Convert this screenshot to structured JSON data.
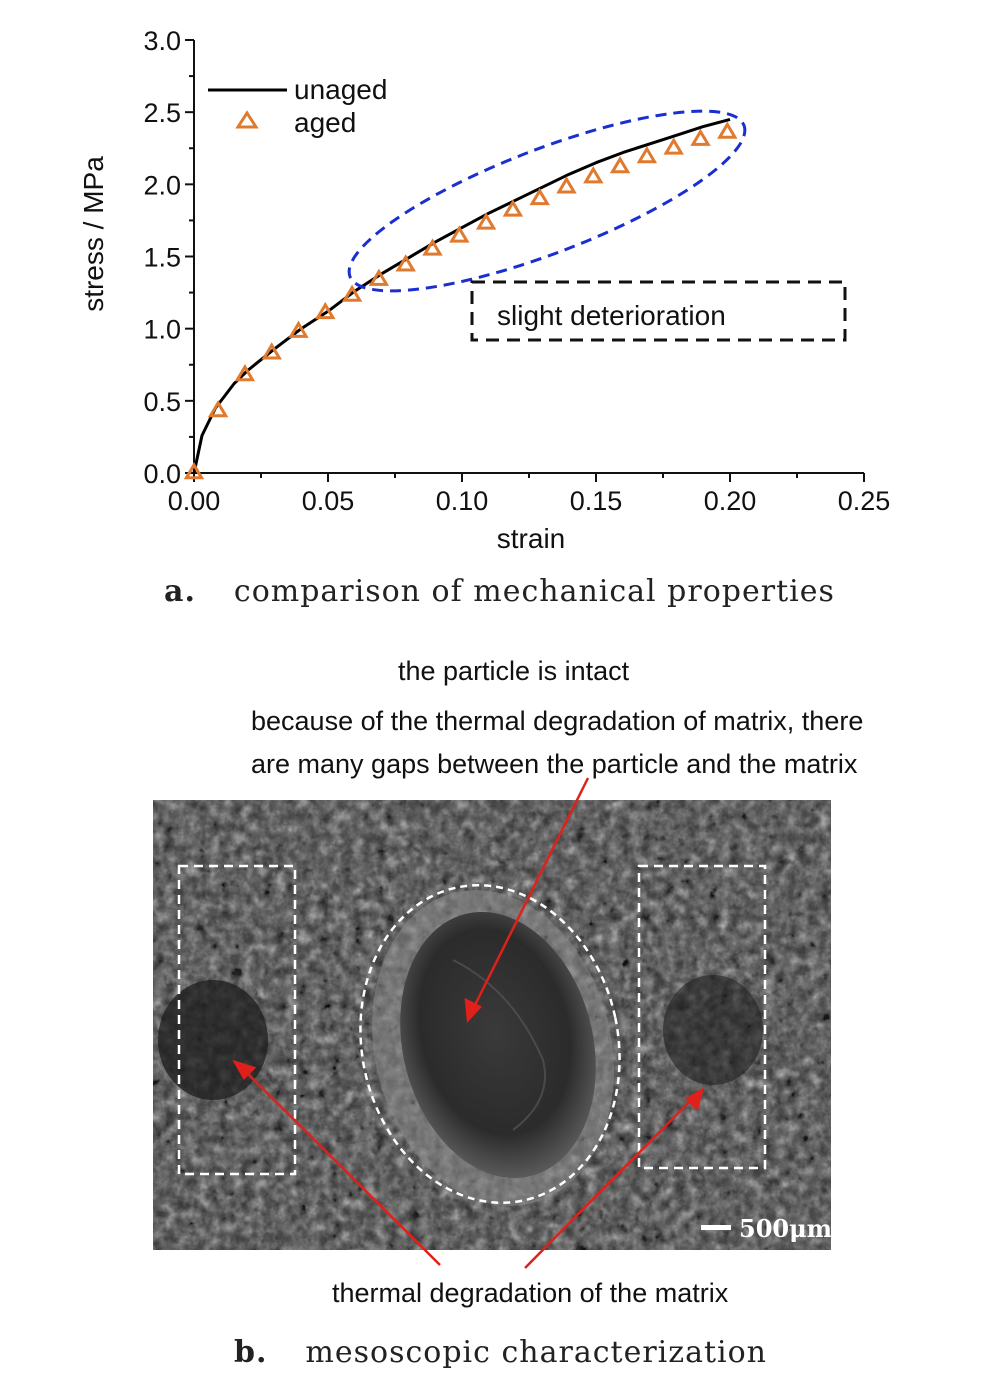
{
  "chart_data": {
    "type": "line",
    "xlabel": "strain",
    "ylabel": "stress / MPa",
    "xlim": [
      0.0,
      0.25
    ],
    "ylim": [
      0.0,
      3.0
    ],
    "xticks": [
      "0.00",
      "0.05",
      "0.10",
      "0.15",
      "0.20",
      "0.25"
    ],
    "yticks": [
      "0.0",
      "0.5",
      "1.0",
      "1.5",
      "2.0",
      "2.5",
      "3.0"
    ],
    "legend_position": "top-left",
    "grid": false,
    "series": [
      {
        "name": "unaged",
        "style": "line",
        "color": "#000000",
        "x": [
          0.0,
          0.003,
          0.008,
          0.015,
          0.02,
          0.03,
          0.04,
          0.05,
          0.06,
          0.07,
          0.08,
          0.09,
          0.1,
          0.11,
          0.12,
          0.13,
          0.14,
          0.15,
          0.16,
          0.17,
          0.18,
          0.19,
          0.2
        ],
        "y": [
          0.0,
          0.26,
          0.45,
          0.62,
          0.71,
          0.86,
          1.0,
          1.12,
          1.26,
          1.38,
          1.49,
          1.6,
          1.7,
          1.8,
          1.89,
          1.98,
          2.07,
          2.15,
          2.22,
          2.28,
          2.34,
          2.4,
          2.45
        ]
      },
      {
        "name": "aged",
        "style": "markers",
        "marker": "triangle",
        "color": "#e07a2e",
        "x": [
          0.0,
          0.009,
          0.019,
          0.029,
          0.039,
          0.049,
          0.059,
          0.069,
          0.079,
          0.089,
          0.099,
          0.109,
          0.119,
          0.129,
          0.139,
          0.149,
          0.159,
          0.169,
          0.179,
          0.189,
          0.199
        ],
        "y": [
          0.0,
          0.43,
          0.68,
          0.83,
          0.98,
          1.11,
          1.23,
          1.34,
          1.44,
          1.55,
          1.64,
          1.73,
          1.82,
          1.9,
          1.98,
          2.05,
          2.12,
          2.19,
          2.25,
          2.31,
          2.36
        ]
      }
    ],
    "annotations": [
      "slight deterioration"
    ]
  },
  "captions": {
    "a_letter": "a.",
    "a_text": "comparison of mechanical properties",
    "b_letter": "b.",
    "b_text": "mesoscopic characterization"
  },
  "sem": {
    "label_intact": "the particle is intact",
    "label_gaps_line1": "because of the thermal degradation of matrix, there",
    "label_gaps_line2": "are many gaps between the particle and the matrix",
    "label_matrix": "thermal degradation of the matrix",
    "scale_bar": "500μm",
    "arrow_color": "#e0201a"
  }
}
